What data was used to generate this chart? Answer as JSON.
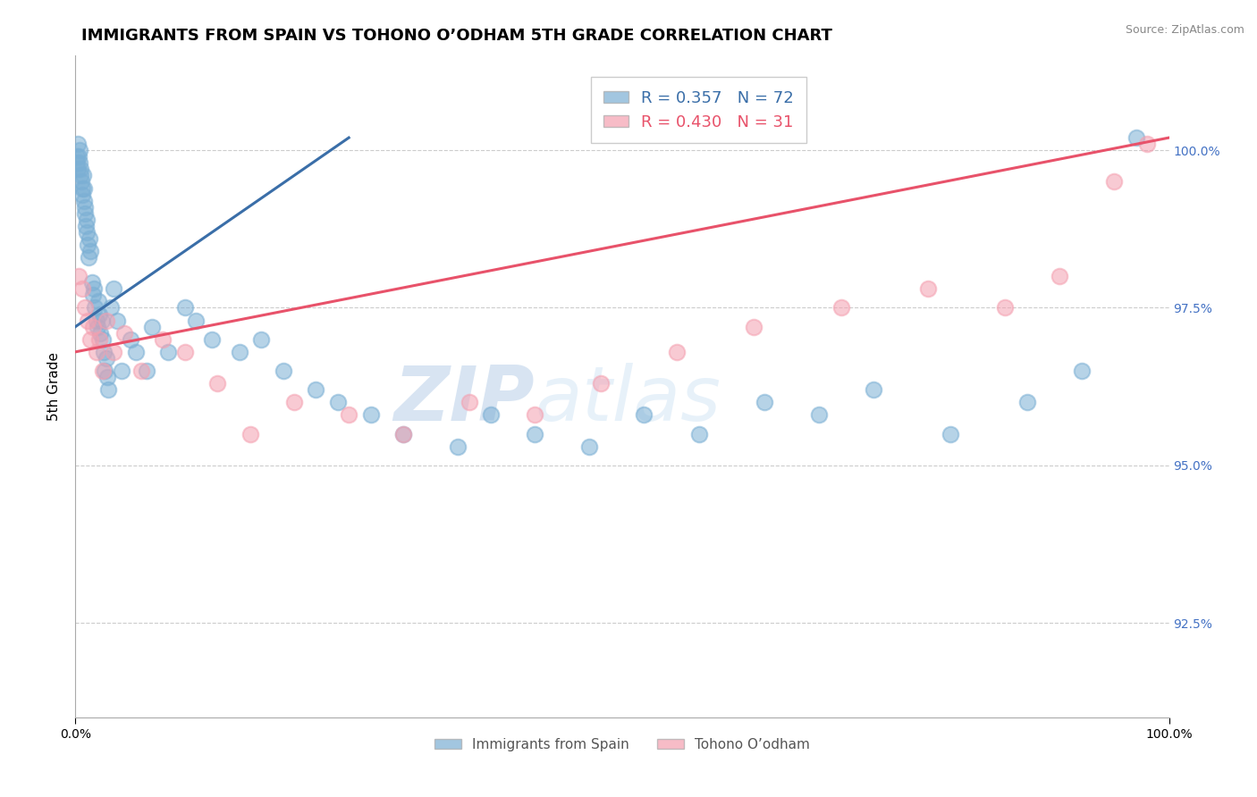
{
  "title": "IMMIGRANTS FROM SPAIN VS TOHONO O’ODHAM 5TH GRADE CORRELATION CHART",
  "source": "Source: ZipAtlas.com",
  "ylabel": "5th Grade",
  "legend_blue_label": "Immigrants from Spain",
  "legend_pink_label": "Tohono O’odham",
  "R_blue": 0.357,
  "N_blue": 72,
  "R_pink": 0.43,
  "N_pink": 31,
  "blue_color": "#7bafd4",
  "pink_color": "#f4a0b0",
  "blue_line_color": "#3a6ea8",
  "pink_line_color": "#e8526a",
  "watermark_zip": "ZIP",
  "watermark_atlas": "atlas",
  "xlim": [
    0.0,
    100.0
  ],
  "ylim": [
    91.0,
    101.5
  ],
  "ytick_values": [
    92.5,
    95.0,
    97.5,
    100.0
  ],
  "blue_x": [
    0.1,
    0.15,
    0.2,
    0.25,
    0.3,
    0.35,
    0.4,
    0.45,
    0.5,
    0.55,
    0.6,
    0.65,
    0.7,
    0.75,
    0.8,
    0.85,
    0.9,
    0.95,
    1.0,
    1.05,
    1.1,
    1.2,
    1.3,
    1.4,
    1.5,
    1.6,
    1.7,
    1.8,
    1.9,
    2.0,
    2.1,
    2.2,
    2.3,
    2.4,
    2.5,
    2.6,
    2.7,
    2.8,
    2.9,
    3.0,
    3.2,
    3.5,
    3.8,
    4.2,
    5.0,
    5.5,
    6.5,
    7.0,
    8.5,
    10.0,
    11.0,
    12.5,
    15.0,
    17.0,
    19.0,
    22.0,
    24.0,
    27.0,
    30.0,
    35.0,
    38.0,
    42.0,
    47.0,
    52.0,
    57.0,
    63.0,
    68.0,
    73.0,
    80.0,
    87.0,
    92.0,
    97.0
  ],
  "blue_y": [
    99.8,
    99.9,
    100.1,
    99.7,
    99.9,
    100.0,
    99.8,
    99.6,
    99.7,
    99.5,
    99.4,
    99.3,
    99.6,
    99.2,
    99.4,
    99.1,
    99.0,
    98.8,
    98.9,
    98.7,
    98.5,
    98.3,
    98.6,
    98.4,
    97.9,
    97.7,
    97.8,
    97.5,
    97.3,
    97.2,
    97.6,
    97.4,
    97.1,
    97.3,
    97.0,
    96.8,
    96.5,
    96.7,
    96.4,
    96.2,
    97.5,
    97.8,
    97.3,
    96.5,
    97.0,
    96.8,
    96.5,
    97.2,
    96.8,
    97.5,
    97.3,
    97.0,
    96.8,
    97.0,
    96.5,
    96.2,
    96.0,
    95.8,
    95.5,
    95.3,
    95.8,
    95.5,
    95.3,
    95.8,
    95.5,
    96.0,
    95.8,
    96.2,
    95.5,
    96.0,
    96.5,
    100.2
  ],
  "pink_x": [
    0.3,
    0.6,
    0.9,
    1.1,
    1.4,
    1.6,
    1.9,
    2.2,
    2.5,
    2.8,
    3.5,
    4.5,
    6.0,
    8.0,
    10.0,
    13.0,
    16.0,
    20.0,
    25.0,
    30.0,
    36.0,
    42.0,
    48.0,
    55.0,
    62.0,
    70.0,
    78.0,
    85.0,
    90.0,
    95.0,
    98.0
  ],
  "pink_y": [
    98.0,
    97.8,
    97.5,
    97.3,
    97.0,
    97.2,
    96.8,
    97.0,
    96.5,
    97.3,
    96.8,
    97.1,
    96.5,
    97.0,
    96.8,
    96.3,
    95.5,
    96.0,
    95.8,
    95.5,
    96.0,
    95.8,
    96.3,
    96.8,
    97.2,
    97.5,
    97.8,
    97.5,
    98.0,
    99.5,
    100.1
  ],
  "blue_line_x": [
    0.0,
    25.0
  ],
  "blue_line_y": [
    97.2,
    100.2
  ],
  "pink_line_x": [
    0.0,
    100.0
  ],
  "pink_line_y": [
    96.8,
    100.2
  ]
}
